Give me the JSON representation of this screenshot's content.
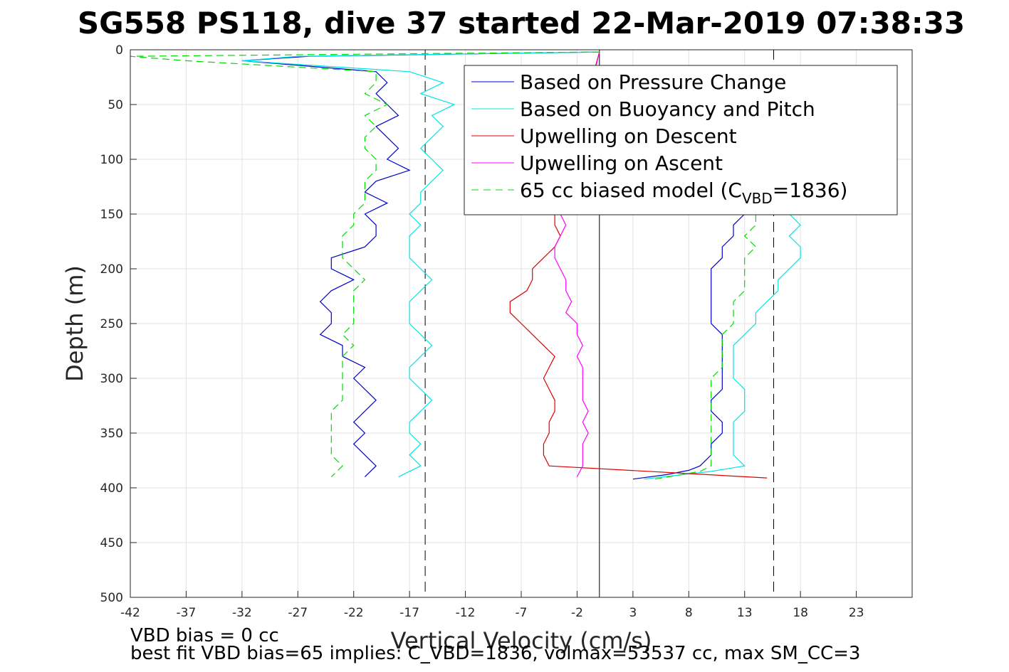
{
  "title": "SG558 PS118, dive 37 started 22-Mar-2019 07:38:33",
  "footer": {
    "line1": "VBD bias = 0 cc",
    "line2": "best fit VBD bias=65 implies: C_VBD=1836, volmax=53537 cc, max SM_CC=3"
  },
  "chart_data": {
    "type": "line",
    "title": "SG558 PS118, dive 37 started 22-Mar-2019 07:38:33",
    "xlabel": "Vertical Velocity (cm/s)",
    "ylabel": "Depth (m)",
    "xlim": [
      -42,
      28
    ],
    "ylim": [
      0,
      500
    ],
    "y_reversed": true,
    "grid": true,
    "legend_position": "top-right",
    "x_ticks": [
      -42,
      -37,
      -32,
      -27,
      -22,
      -17,
      -12,
      -7,
      -2,
      3,
      8,
      13,
      18,
      23
    ],
    "y_ticks": [
      0,
      50,
      100,
      150,
      200,
      250,
      300,
      350,
      400,
      450,
      500
    ],
    "reference_lines": [
      {
        "x": -15.6,
        "style": "dashed",
        "color": "#000000"
      },
      {
        "x": 0,
        "style": "solid",
        "color": "#000000"
      },
      {
        "x": 15.6,
        "style": "dashed",
        "color": "#000000"
      }
    ],
    "legend": {
      "pressure": "Based on Pressure Change",
      "buoyancy": "Based on Buoyancy and Pitch",
      "up_descent": "Upwelling on Descent",
      "up_ascent": "Upwelling on Ascent",
      "model_prefix": "65 cc biased model (C",
      "model_sub": "VBD",
      "model_suffix": "=1836)"
    },
    "series": [
      {
        "key": "pressure",
        "name": "Based on Pressure Change",
        "color": "#0000cc",
        "style": "solid",
        "descent": {
          "depth": [
            2,
            6,
            10,
            20,
            30,
            40,
            50,
            60,
            70,
            80,
            90,
            100,
            110,
            120,
            130,
            140,
            150,
            160,
            170,
            180,
            190,
            200,
            210,
            220,
            230,
            240,
            250,
            260,
            270,
            280,
            290,
            300,
            310,
            320,
            330,
            340,
            350,
            360,
            370,
            380,
            390
          ],
          "x": [
            0,
            -26,
            -32,
            -20,
            -19,
            -20,
            -19,
            -18,
            -20,
            -19,
            -18,
            -19,
            -17,
            -20,
            -21,
            -19,
            -21,
            -20,
            -20,
            -21,
            -24,
            -24,
            -22,
            -24,
            -25,
            -24,
            -24,
            -25,
            -23,
            -23,
            -21,
            -22,
            -21,
            -20,
            -21,
            -22,
            -21,
            -22,
            -21,
            -20,
            -21
          ]
        },
        "ascent": {
          "depth": [
            392,
            388,
            384,
            380,
            370,
            360,
            350,
            340,
            330,
            320,
            310,
            300,
            290,
            280,
            270,
            260,
            250,
            240,
            230,
            220,
            210,
            200,
            190,
            180,
            170,
            160,
            150
          ],
          "x": [
            3,
            6,
            8,
            9,
            10,
            10,
            11,
            11,
            10,
            10,
            11,
            11,
            11,
            11,
            11,
            11,
            10,
            10,
            10,
            10,
            10,
            10,
            11,
            11,
            12,
            12,
            13
          ]
        }
      },
      {
        "key": "buoyancy",
        "name": "Based on Buoyancy and Pitch",
        "color": "#00e5e5",
        "style": "solid",
        "descent": {
          "depth": [
            2,
            6,
            10,
            20,
            30,
            40,
            50,
            60,
            70,
            80,
            90,
            100,
            110,
            120,
            130,
            140,
            150,
            160,
            170,
            180,
            190,
            200,
            210,
            220,
            230,
            240,
            250,
            260,
            270,
            280,
            290,
            300,
            310,
            320,
            330,
            340,
            350,
            360,
            370,
            380,
            390
          ],
          "x": [
            0,
            -27,
            -32,
            -17,
            -14,
            -16,
            -13,
            -15,
            -14,
            -15,
            -16,
            -15,
            -14,
            -15,
            -16,
            -16,
            -17,
            -16,
            -17,
            -17,
            -17,
            -16,
            -15,
            -16,
            -17,
            -17,
            -17,
            -16,
            -15,
            -16,
            -17,
            -17,
            -16,
            -15,
            -16,
            -17,
            -17,
            -16,
            -17,
            -16,
            -18
          ]
        },
        "ascent": {
          "depth": [
            392,
            385,
            380,
            370,
            360,
            350,
            340,
            330,
            320,
            310,
            300,
            290,
            280,
            270,
            260,
            250,
            240,
            230,
            220,
            210,
            200,
            190,
            180,
            170,
            160,
            150
          ],
          "x": [
            4,
            10,
            13,
            12,
            12,
            12,
            12,
            13,
            13,
            13,
            12,
            12,
            12,
            12,
            13,
            14,
            14,
            15,
            16,
            16,
            17,
            18,
            18,
            17,
            18,
            17
          ]
        }
      },
      {
        "key": "up_descent",
        "name": "Upwelling on Descent",
        "color": "#e00000",
        "style": "solid",
        "points": {
          "depth": [
            2,
            150,
            160,
            170,
            180,
            190,
            200,
            210,
            220,
            230,
            240,
            250,
            260,
            270,
            280,
            290,
            300,
            310,
            320,
            330,
            340,
            350,
            360,
            370,
            380,
            391
          ],
          "x": [
            0,
            -4,
            -4,
            -3.5,
            -4,
            -5,
            -6,
            -6,
            -6.5,
            -8,
            -8,
            -7,
            -6,
            -5,
            -4,
            -4.5,
            -5,
            -4.5,
            -4,
            -4,
            -4.5,
            -4.5,
            -5,
            -5,
            -4.5,
            15
          ]
        }
      },
      {
        "key": "up_ascent",
        "name": "Upwelling on Ascent",
        "color": "#ff00ff",
        "style": "solid",
        "points": {
          "depth": [
            2,
            150,
            160,
            170,
            180,
            190,
            200,
            210,
            220,
            230,
            240,
            250,
            260,
            270,
            280,
            290,
            300,
            310,
            320,
            330,
            340,
            350,
            360,
            370,
            380,
            390
          ],
          "x": [
            0,
            -3.5,
            -3,
            -3.5,
            -4,
            -4,
            -3.5,
            -3,
            -3,
            -2.5,
            -3,
            -2,
            -2,
            -1.5,
            -2,
            -1.5,
            -1.5,
            -1.5,
            -1.5,
            -1,
            -1.5,
            -1,
            -1.5,
            -1.5,
            -1.5,
            -2
          ]
        }
      },
      {
        "key": "model",
        "name": "65 cc biased model (CVBD=1836)",
        "color": "#00dd00",
        "style": "dashed",
        "descent": {
          "depth": [
            2,
            6,
            10,
            20,
            30,
            40,
            50,
            60,
            70,
            80,
            90,
            100,
            110,
            120,
            130,
            140,
            150,
            160,
            170,
            180,
            190,
            200,
            210,
            220,
            230,
            240,
            250,
            260,
            270,
            280,
            290,
            300,
            310,
            320,
            330,
            340,
            350,
            360,
            370,
            380,
            390
          ],
          "x": [
            0,
            -42,
            -37,
            -20,
            -20,
            -21,
            -19,
            -21,
            -20,
            -21,
            -21,
            -20,
            -20,
            -21,
            -21,
            -21,
            -22,
            -22,
            -23,
            -23,
            -23,
            -22,
            -21,
            -22,
            -22,
            -22,
            -22,
            -23,
            -22,
            -23,
            -23,
            -23,
            -23,
            -23,
            -24,
            -24,
            -24,
            -24,
            -24,
            -23,
            -24
          ]
        },
        "ascent": {
          "depth": [
            392,
            385,
            380,
            370,
            360,
            350,
            340,
            330,
            320,
            310,
            300,
            290,
            280,
            270,
            260,
            250,
            240,
            230,
            220,
            210,
            200,
            190,
            180,
            170,
            160,
            150
          ],
          "x": [
            5,
            9,
            10,
            10,
            10,
            10,
            10,
            10,
            10,
            10,
            10,
            11,
            11,
            11,
            11,
            12,
            12,
            12,
            13,
            13,
            13,
            13,
            14,
            13,
            14,
            14
          ]
        }
      }
    ]
  }
}
